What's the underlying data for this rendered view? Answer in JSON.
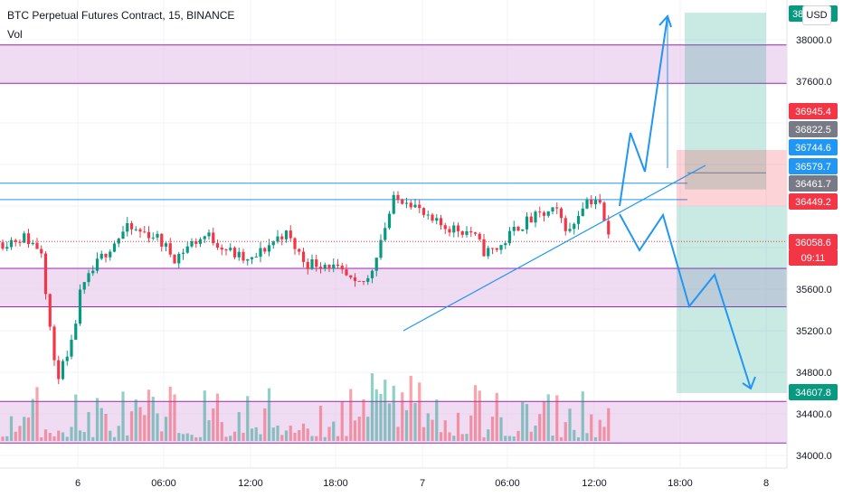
{
  "header": {
    "title": "BTC Perpetual Futures Contract, 15, BINANCE",
    "volume_label": "Vol"
  },
  "currency_button": "USD",
  "chart_data": {
    "type": "candlestick",
    "ylim": [
      33850,
      38350
    ],
    "y_ticks": [
      "38000.0",
      "37600.0",
      "35600.0",
      "35200.0",
      "34800.0",
      "34400.0",
      "34000.0"
    ],
    "x_ticks": [
      "6",
      "06:00",
      "12:00",
      "18:00",
      "7",
      "06:00",
      "12:00",
      "18:00",
      "8"
    ],
    "price_labels": [
      {
        "text": "36945.4",
        "color": "#f23645"
      },
      {
        "text": "36822.5",
        "color": "#787b86"
      },
      {
        "text": "36744.6",
        "color": "#2196f3"
      },
      {
        "text": "36579.7",
        "color": "#2196f3"
      },
      {
        "text": "36461.7",
        "color": "#787b86"
      },
      {
        "text": "36449.2",
        "color": "#f23645"
      },
      {
        "text": "36058.6",
        "color": "#f23645"
      },
      {
        "text": "09:11",
        "color": "#f23645"
      },
      {
        "text": "34607.8",
        "color": "#089981"
      }
    ],
    "partial_top_label": "38...4",
    "zones": [
      {
        "from": 37580,
        "to": 37950,
        "color": "#e1bee7"
      },
      {
        "from": 35430,
        "to": 35800,
        "color": "#e1bee7"
      },
      {
        "from": 34120,
        "to": 34520,
        "color": "#e1bee7"
      }
    ],
    "horizontal_lines": [
      36620,
      36461.7
    ],
    "last_price": 36058.6,
    "up_color": "#089981",
    "down_color": "#f23645",
    "accent_color": "#2196f3"
  }
}
